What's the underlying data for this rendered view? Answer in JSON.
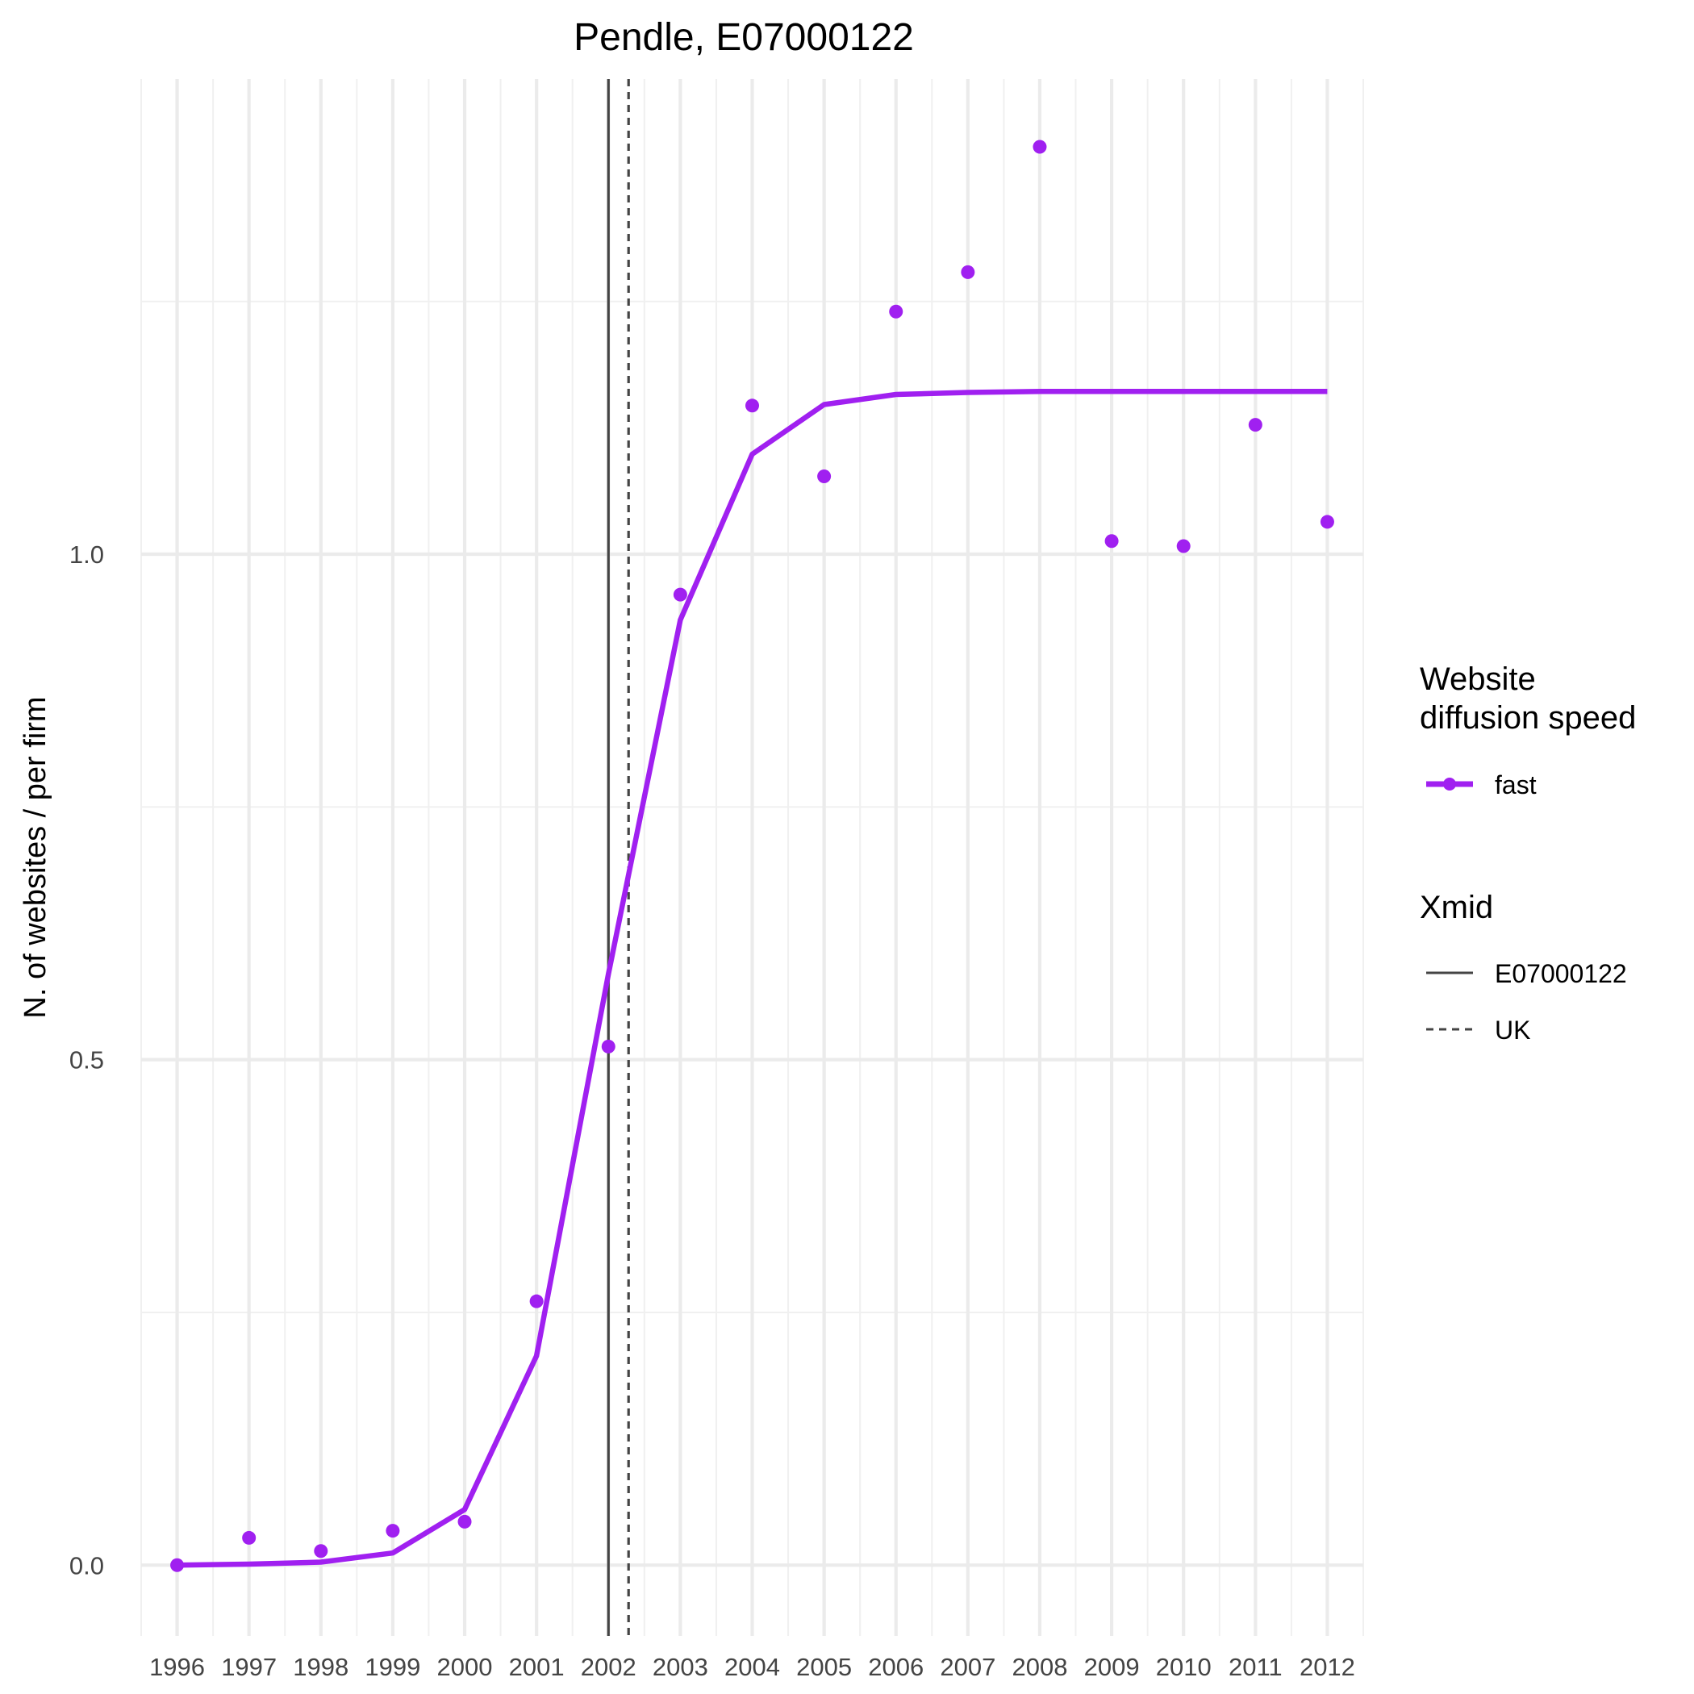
{
  "chart_data": {
    "type": "line",
    "title": "Pendle, E07000122",
    "xlabel": "",
    "ylabel": "N. of websites / per firm",
    "x": [
      1996,
      1997,
      1998,
      1999,
      2000,
      2001,
      2002,
      2003,
      2004,
      2005,
      2006,
      2007,
      2008,
      2009,
      2010,
      2011,
      2012
    ],
    "x_tick_labels": [
      "1996",
      "1997",
      "1998",
      "1999",
      "2000",
      "2001",
      "2002",
      "2003",
      "2004",
      "2005",
      "2006",
      "2007",
      "2008",
      "2009",
      "2010",
      "2011",
      "2012"
    ],
    "y_tick_labels": [
      "0.0",
      "0.5",
      "1.0"
    ],
    "y_ticks": [
      0.0,
      0.5,
      1.0
    ],
    "xlim": [
      1995.5,
      2012.5
    ],
    "ylim": [
      -0.07,
      1.47
    ],
    "grid": true,
    "series": [
      {
        "name": "fast",
        "color": "#a020f0",
        "fitted": [
          0.0,
          0.001,
          0.003,
          0.012,
          0.055,
          0.207,
          0.585,
          0.935,
          1.099,
          1.148,
          1.158,
          1.16,
          1.161,
          1.161,
          1.161,
          1.161,
          1.161
        ],
        "observed": [
          0.0,
          0.027,
          0.014,
          0.034,
          0.043,
          0.261,
          0.513,
          0.96,
          1.147,
          1.077,
          1.24,
          1.279,
          1.403,
          1.013,
          1.008,
          1.128,
          1.032
        ]
      }
    ],
    "vlines": [
      {
        "name": "E07000122",
        "x": 2002.0,
        "style": "solid",
        "color": "#444444"
      },
      {
        "name": "UK",
        "x": 2002.28,
        "style": "dashed",
        "color": "#444444"
      }
    ],
    "legend": {
      "placement": "right",
      "groups": [
        {
          "title_lines": [
            "Website",
            "diffusion speed"
          ],
          "entries": [
            {
              "label": "fast",
              "kind": "line-point",
              "color": "#a020f0"
            }
          ]
        },
        {
          "title_lines": [
            "Xmid"
          ],
          "entries": [
            {
              "label": "E07000122",
              "kind": "solid"
            },
            {
              "label": "UK",
              "kind": "dashed"
            }
          ]
        }
      ]
    }
  }
}
